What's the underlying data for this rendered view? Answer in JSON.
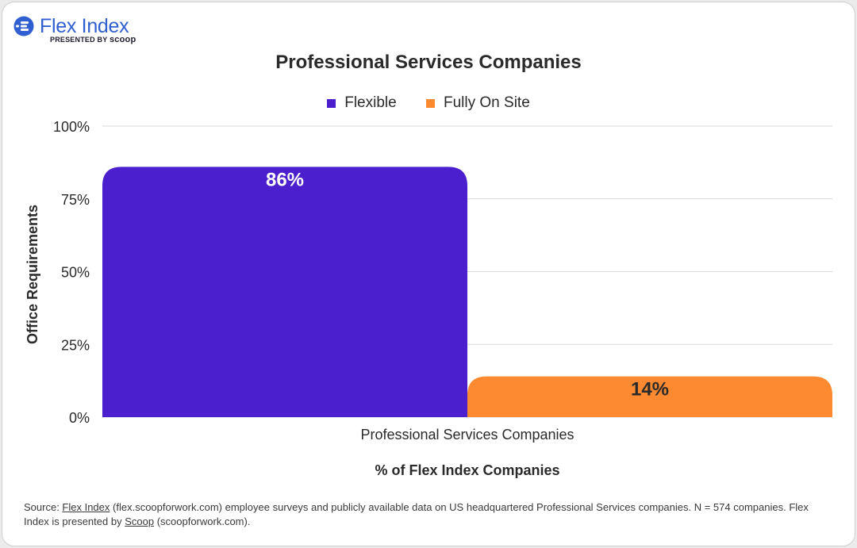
{
  "brand": {
    "name": "Flex Index",
    "presented_by": "PRESENTED BY",
    "partner": "scoop"
  },
  "colors": {
    "flexible": "#4b1fce",
    "fully_on_site": "#fd8a31",
    "brand_blue": "#2f5fd0",
    "grid": "#d9d9d9",
    "text": "#2a2a2a"
  },
  "chart_data": {
    "type": "bar",
    "title": "Professional Services Companies",
    "categories": [
      "Professional Services Companies"
    ],
    "series": [
      {
        "name": "Flexible",
        "values": [
          86
        ],
        "data_label": "86%"
      },
      {
        "name": "Fully On Site",
        "values": [
          14
        ],
        "data_label": "14%"
      }
    ],
    "xlabel": "% of Flex Index Companies",
    "ylabel": "Office Requirements",
    "ylim": [
      0,
      100
    ],
    "yticks": [
      "0%",
      "25%",
      "50%",
      "75%",
      "100%"
    ],
    "grid": true,
    "legend": "top-center"
  },
  "source": {
    "prefix": "Source: ",
    "link1": "Flex Index",
    "mid": " (flex.scoopforwork.com) employee surveys and publicly available data on US headquartered Professional Services companies. N = 574 companies. Flex Index is presented by ",
    "link2": "Scoop",
    "suffix": " (scoopforwork.com)."
  }
}
